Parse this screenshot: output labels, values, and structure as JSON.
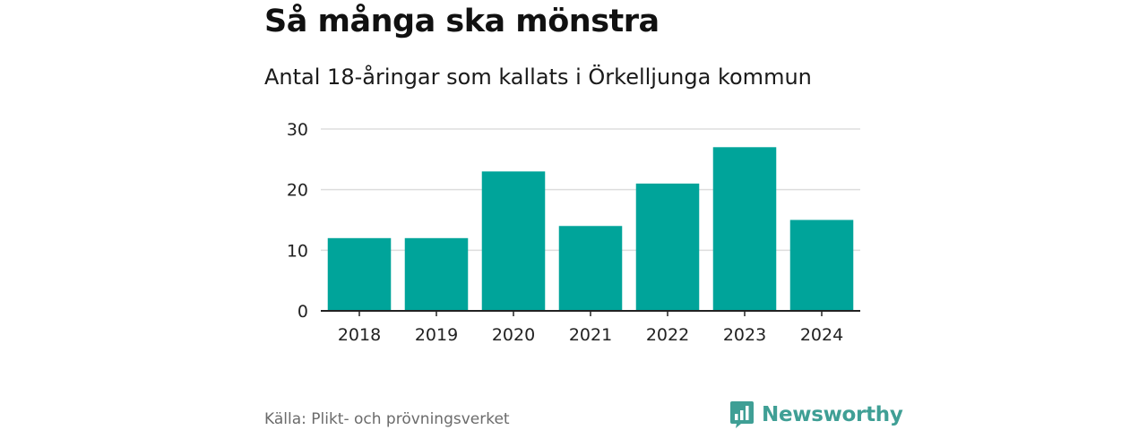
{
  "header": {
    "title": "Så många ska mönstra",
    "subtitle": "Antal 18-åringar som kallats i Örkelljunga kommun"
  },
  "chart_data": {
    "type": "bar",
    "categories": [
      "2018",
      "2019",
      "2020",
      "2021",
      "2022",
      "2023",
      "2024"
    ],
    "values": [
      12,
      12,
      23,
      14,
      21,
      27,
      15
    ],
    "ylim": [
      0,
      30
    ],
    "yticks": [
      0,
      10,
      20,
      30
    ],
    "grid": true,
    "legend": "none",
    "bar_color": "#00a49a",
    "grid_color": "#dddddd",
    "axis_color": "#222222"
  },
  "footer": {
    "source": "Källa: Plikt- och prövningsverket",
    "brand": "Newsworthy",
    "brand_icon": "newsworthy-logo-icon",
    "brand_color": "#3f9f95"
  }
}
